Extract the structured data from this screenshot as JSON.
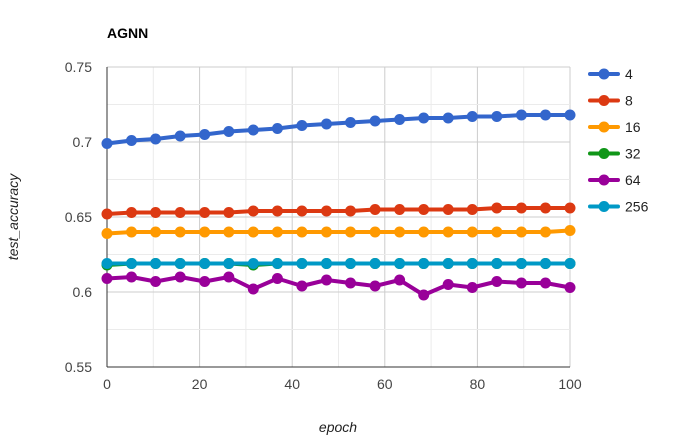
{
  "chart_data": {
    "type": "line",
    "title": "AGNN",
    "xlabel": "epoch",
    "ylabel": "test_accuracy",
    "xlim": [
      0,
      100
    ],
    "ylim": [
      0.55,
      0.75
    ],
    "x_ticks": [
      0,
      20,
      40,
      60,
      80,
      100
    ],
    "x_tick_labels": [
      "0",
      "20",
      "40",
      "60",
      "80",
      "100"
    ],
    "y_ticks": [
      0.55,
      0.6,
      0.65,
      0.7,
      0.75
    ],
    "y_tick_labels": [
      "0.55",
      "0.6",
      "0.65",
      "0.7",
      "0.75"
    ],
    "grid": true,
    "legend_position": "right",
    "x": [
      0,
      5.3,
      10.5,
      15.8,
      21.1,
      26.3,
      31.6,
      36.8,
      42.1,
      47.4,
      52.6,
      57.9,
      63.2,
      68.4,
      73.7,
      78.9,
      84.2,
      89.5,
      94.7,
      100
    ],
    "series": [
      {
        "name": "4",
        "color": "#3366cc",
        "values": [
          0.699,
          0.701,
          0.702,
          0.704,
          0.705,
          0.707,
          0.708,
          0.709,
          0.711,
          0.712,
          0.713,
          0.714,
          0.715,
          0.716,
          0.716,
          0.717,
          0.717,
          0.718,
          0.718,
          0.718
        ]
      },
      {
        "name": "8",
        "color": "#dc3912",
        "values": [
          0.652,
          0.653,
          0.653,
          0.653,
          0.653,
          0.653,
          0.654,
          0.654,
          0.654,
          0.654,
          0.654,
          0.655,
          0.655,
          0.655,
          0.655,
          0.655,
          0.656,
          0.656,
          0.656,
          0.656
        ]
      },
      {
        "name": "16",
        "color": "#ff9900",
        "values": [
          0.639,
          0.64,
          0.64,
          0.64,
          0.64,
          0.64,
          0.64,
          0.64,
          0.64,
          0.64,
          0.64,
          0.64,
          0.64,
          0.64,
          0.64,
          0.64,
          0.64,
          0.64,
          0.64,
          0.641
        ]
      },
      {
        "name": "32",
        "color": "#109618",
        "values": [
          0.618,
          0.619,
          0.619,
          0.619,
          0.619,
          0.619,
          0.618,
          0.619,
          0.619,
          0.619,
          0.619,
          0.619,
          0.619,
          0.619,
          0.619,
          0.619,
          0.619,
          0.619,
          0.619,
          0.619
        ]
      },
      {
        "name": "64",
        "color": "#990099",
        "values": [
          0.609,
          0.61,
          0.607,
          0.61,
          0.607,
          0.61,
          0.602,
          0.609,
          0.604,
          0.608,
          0.606,
          0.604,
          0.608,
          0.598,
          0.605,
          0.603,
          0.607,
          0.606,
          0.606,
          0.603
        ]
      },
      {
        "name": "256",
        "color": "#0099c6",
        "values": [
          0.619,
          0.619,
          0.619,
          0.619,
          0.619,
          0.619,
          0.619,
          0.619,
          0.619,
          0.619,
          0.619,
          0.619,
          0.619,
          0.619,
          0.619,
          0.619,
          0.619,
          0.619,
          0.619,
          0.619
        ]
      }
    ]
  }
}
